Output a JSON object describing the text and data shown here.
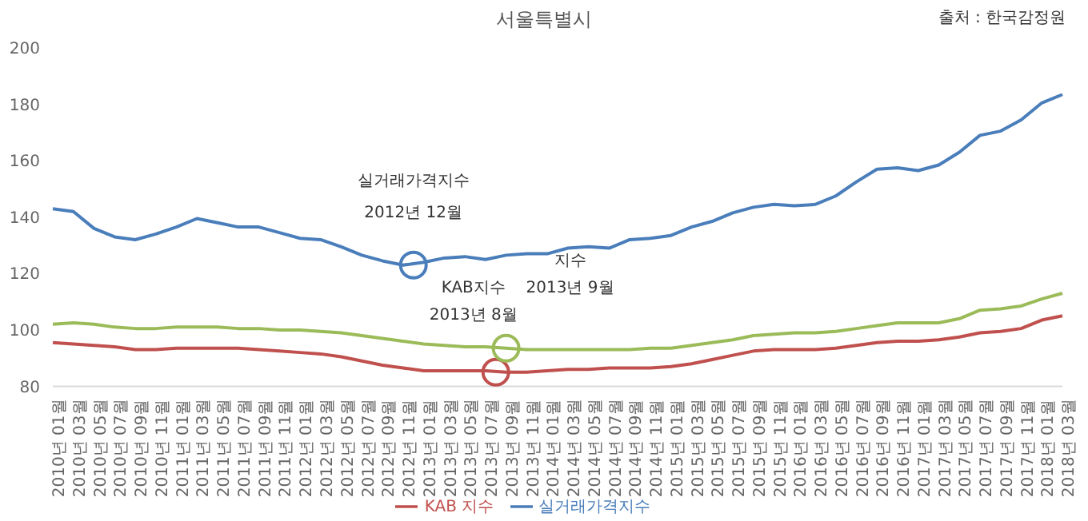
{
  "chart_data": {
    "type": "line",
    "title": "서울특별시",
    "categories": [
      "2010년 01월",
      "2010년 03월",
      "2010년 05월",
      "2010년 07월",
      "2010년 09월",
      "2010년 11월",
      "2011년 01월",
      "2011년 03월",
      "2011년 05월",
      "2011년 07월",
      "2011년 09월",
      "2011년 11월",
      "2012년 01월",
      "2012년 03월",
      "2012년 05월",
      "2012년 07월",
      "2012년 09월",
      "2012년 11월",
      "2013년 01월",
      "2013년 03월",
      "2013년 05월",
      "2013년 07월",
      "2013년 09월",
      "2013년 11월",
      "2014년 01월",
      "2014년 03월",
      "2014년 05월",
      "2014년 07월",
      "2014년 09월",
      "2014년 11월",
      "2015년 01월",
      "2015년 03월",
      "2015년 05월",
      "2015년 07월",
      "2015년 09월",
      "2015년 11월",
      "2016년 01월",
      "2016년 03월",
      "2016년 05월",
      "2016년 07월",
      "2016년 09월",
      "2016년 11월",
      "2017년 01월",
      "2017년 03월",
      "2017년 05월",
      "2017년 07월",
      "2017년 09월",
      "2017년 11월",
      "2018년 01월",
      "2018년 03월"
    ],
    "series": [
      {
        "name": "실거래가격지수",
        "color": "#4a7ebb",
        "values": [
          143,
          142,
          136,
          133,
          132,
          134,
          136.5,
          139.5,
          138,
          136.5,
          136.5,
          134.5,
          132.5,
          132,
          129.5,
          126.5,
          124.5,
          123,
          124,
          125.5,
          126,
          125,
          126.5,
          127,
          127,
          129,
          129.5,
          129,
          132,
          132.5,
          133.5,
          136.5,
          138.5,
          141.5,
          143.5,
          144.5,
          144,
          144.5,
          147.5,
          152.5,
          157,
          157.5,
          156.5,
          158.5,
          163,
          169,
          170.5,
          174.5,
          180.5,
          183.5
        ]
      },
      {
        "name": "KAB 지수",
        "color": "#c0504d",
        "values": [
          95.5,
          95,
          94.5,
          94,
          93,
          93,
          93.5,
          93.5,
          93.5,
          93.5,
          93,
          92.5,
          92,
          91.5,
          90.5,
          89,
          87.5,
          86.5,
          85.5,
          85.5,
          85.5,
          85.5,
          85,
          85,
          85.5,
          86,
          86,
          86.5,
          86.5,
          86.5,
          87,
          88,
          89.5,
          91,
          92.5,
          93,
          93,
          93,
          93.5,
          94.5,
          95.5,
          96,
          96,
          96.5,
          97.5,
          99,
          99.5,
          100.5,
          103.5,
          105
        ]
      },
      {
        "color": "#9bbb59",
        "values": [
          102,
          102.5,
          102,
          101,
          100.5,
          100.5,
          101,
          101,
          101,
          100.5,
          100.5,
          100,
          100,
          99.5,
          99,
          98,
          97,
          96,
          95,
          94.5,
          94,
          94,
          93.5,
          93,
          93,
          93,
          93,
          93,
          93,
          93.5,
          93.5,
          94.5,
          95.5,
          96.5,
          98,
          98.5,
          99,
          99,
          99.5,
          100.5,
          101.5,
          102.5,
          102.5,
          102.5,
          104,
          107,
          107.5,
          108.5,
          111,
          113
        ]
      }
    ],
    "ylim": [
      80,
      200
    ],
    "yticks": [
      80,
      100,
      120,
      140,
      160,
      180,
      200
    ],
    "grid": false,
    "legend": "bottom",
    "annotations": [
      "출처 : 한국감정원",
      "실거래가격지수",
      "2012년 12월",
      "KAB지수",
      "2013년 8월",
      "지수",
      "2013년 9월"
    ]
  }
}
